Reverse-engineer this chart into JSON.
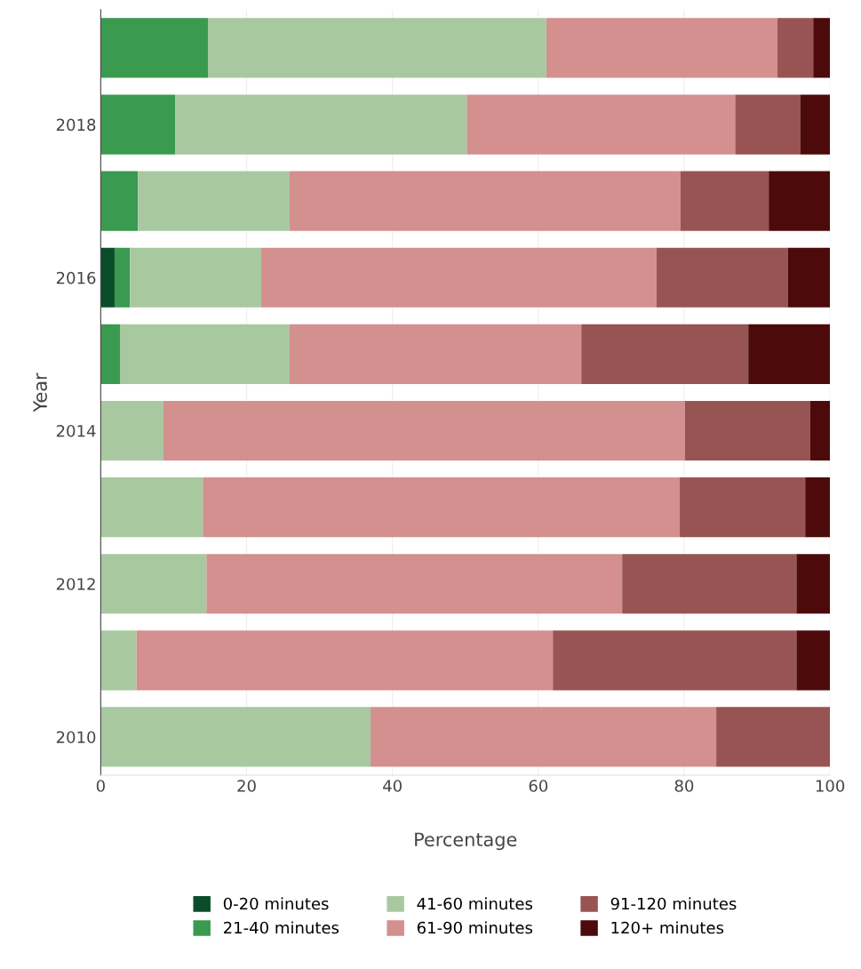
{
  "chart_data": {
    "type": "bar",
    "orientation": "horizontal",
    "stacked": true,
    "xlabel": "Percentage",
    "ylabel": "Year",
    "categories": [
      null,
      "2018",
      null,
      "2016",
      null,
      "2014",
      null,
      "2012",
      null,
      "2010"
    ],
    "series": [
      {
        "name": "0-20 minutes",
        "color": "#0b4d2a",
        "values": [
          0,
          0,
          0,
          1.9,
          0,
          0,
          0,
          0,
          0,
          0
        ]
      },
      {
        "name": "21-40 minutes",
        "color": "#3a9a50",
        "values": [
          14.7,
          10.2,
          5.1,
          2.1,
          2.7,
          0,
          0,
          0,
          0,
          0
        ]
      },
      {
        "name": "41-60 minutes",
        "color": "#a8c9a0",
        "values": [
          46.4,
          40.0,
          20.8,
          18.0,
          23.2,
          8.6,
          14.0,
          14.5,
          4.9,
          37.0
        ]
      },
      {
        "name": "61-90 minutes",
        "color": "#d48f8f",
        "values": [
          31.7,
          36.8,
          53.6,
          54.2,
          40.0,
          71.5,
          65.4,
          57.0,
          57.1,
          47.4
        ]
      },
      {
        "name": "91-120 minutes",
        "color": "#985453",
        "values": [
          4.9,
          8.9,
          12.1,
          18.0,
          22.9,
          17.2,
          17.2,
          23.9,
          33.4,
          15.6
        ]
      },
      {
        "name": "120+ minutes",
        "color": "#4d0a0a",
        "values": [
          2.3,
          4.1,
          8.4,
          5.8,
          11.2,
          2.7,
          3.4,
          4.6,
          4.6,
          0
        ]
      }
    ],
    "xlim": [
      0,
      100
    ],
    "xticks": [
      0,
      20,
      40,
      60,
      80,
      100
    ],
    "grid": "x",
    "legend": "bottom"
  }
}
